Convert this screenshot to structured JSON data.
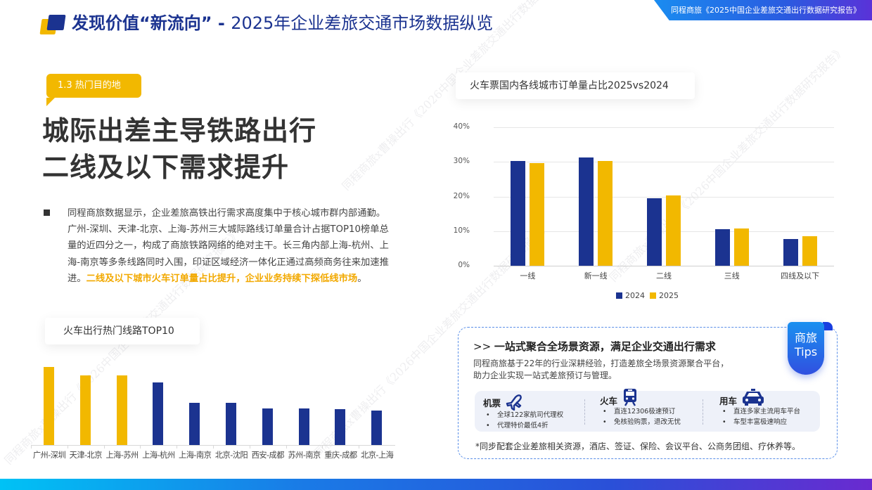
{
  "header": {
    "title_strong": "发现价值“新流向”",
    "title_sep": " - ",
    "title_light": "2025年企业差旅交通市场数据纵览",
    "report_tag": "同程商旅《2025中国企业差旅交通出行数据研究报告》"
  },
  "section": {
    "tag": "1.3 热门目的地",
    "headline_line1": "城际出差主导铁路出行",
    "headline_line2": "二线及以下需求提升",
    "paragraph": "同程商旅数据显示，企业差旅高铁出行需求高度集中于核心城市群内部通勤。广州-深圳、天津-北京、上海-苏州三大城际路线订单量合计占据TOP10榜单总量的近四分之一，构成了商旅铁路网络的绝对主干。长三角内部上海-杭州、上海-南京等多条线路同时入围，印证区域经济一体化正通过高频商务往来加速推进。",
    "paragraph_highlight": "二线及以下城市火车订单量占比提升，企业业务持续下探低线市场",
    "paragraph_end": "。"
  },
  "colors": {
    "navy": "#1b3390",
    "gold": "#f2b800",
    "highlight_text": "#f2a900"
  },
  "chart_data": [
    {
      "type": "bar",
      "title": "火车出行热门线路TOP10",
      "xlabel": "",
      "ylabel": "",
      "axis_visible": false,
      "grid": false,
      "categories": [
        "广州-深圳",
        "天津-北京",
        "上海-苏州",
        "上海-杭州",
        "上海-南京",
        "北京-沈阳",
        "西安-成都",
        "苏州-南京",
        "重庆-成都",
        "北京-上海"
      ],
      "values": [
        111,
        99,
        99,
        89,
        60,
        60,
        52,
        52,
        51,
        49
      ],
      "value_unit": "relative bar height (no axis shown)",
      "bar_colors": [
        "#f2b800",
        "#f2b800",
        "#f2b800",
        "#1b3390",
        "#1b3390",
        "#1b3390",
        "#1b3390",
        "#1b3390",
        "#1b3390",
        "#1b3390"
      ]
    },
    {
      "type": "bar",
      "title": "火车票国内各线城市订单量占比2025vs2024",
      "xlabel": "",
      "ylabel": "",
      "ylim": [
        0,
        40
      ],
      "yticks": [
        "0%",
        "10%",
        "20%",
        "30%",
        "40%"
      ],
      "grid": true,
      "legend_position": "bottom",
      "categories": [
        "一线",
        "新一线",
        "二线",
        "三线",
        "四线及以下"
      ],
      "series": [
        {
          "name": "2024",
          "color": "#1b3390",
          "values": [
            30.3,
            31.3,
            19.5,
            10.6,
            7.8
          ]
        },
        {
          "name": "2025",
          "color": "#f2b800",
          "values": [
            29.7,
            30.3,
            20.3,
            10.8,
            8.6
          ]
        }
      ]
    }
  ],
  "tips": {
    "badge_line1": "商旅",
    "badge_line2": "Tips",
    "head_prefix": ">> ",
    "head": "一站式聚合全场景资源，满足企业交通出行需求",
    "desc_line1": "同程商旅基于22年的行业深耕经验，打造差旅全场景资源聚合平台，",
    "desc_line2": "助力企业实现一站式差旅预订与管理。",
    "services": [
      {
        "title": "机票",
        "icon": "airplane-icon",
        "items": [
          "全球122家航司代理权",
          "代理特价最低4折"
        ]
      },
      {
        "title": "火车",
        "icon": "train-icon",
        "items": [
          "直连12306极速预订",
          "免核验购票，退改无忧"
        ]
      },
      {
        "title": "用车",
        "icon": "taxi-icon",
        "items": [
          "直连多家主流用车平台",
          "车型丰富极速响应"
        ]
      }
    ],
    "footnote": "*同步配套企业差旅相关资源，酒店、签证、保险、会议平台、公商务团组、疗休养等。"
  }
}
